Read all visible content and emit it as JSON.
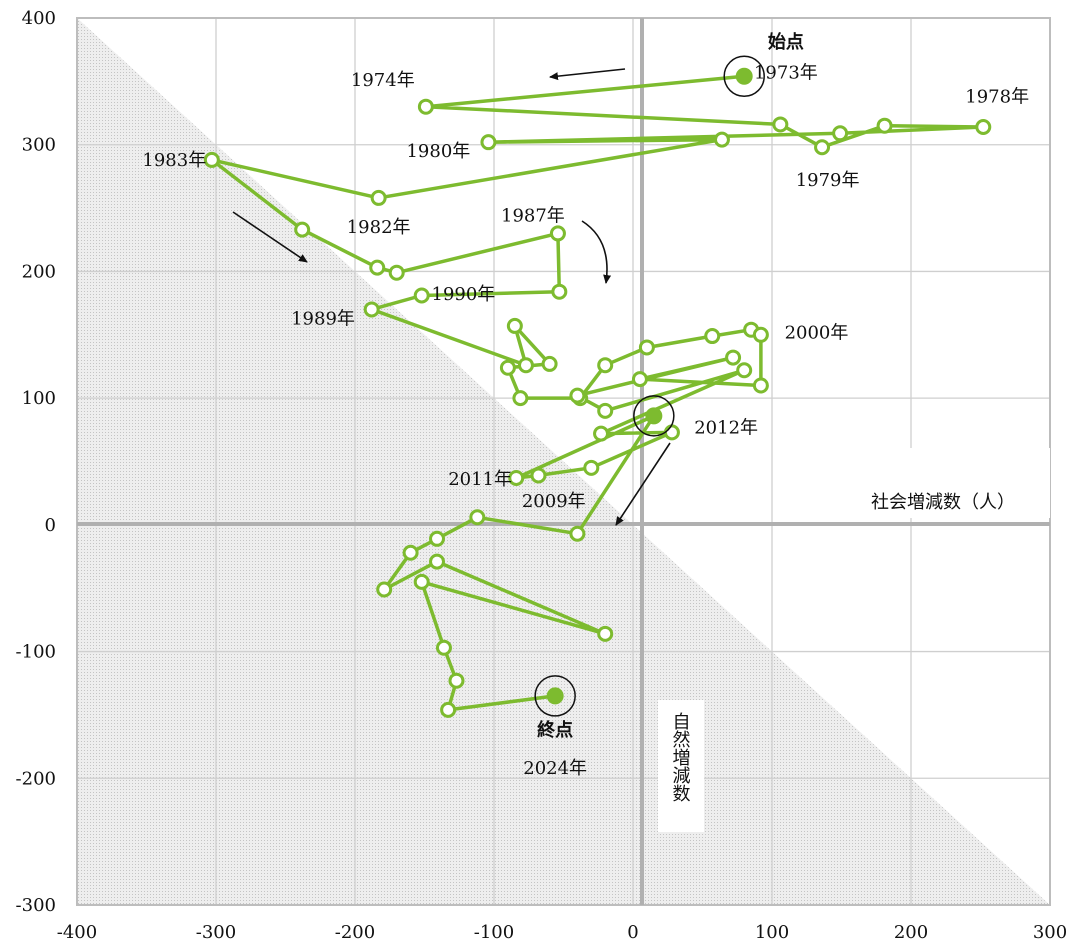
{
  "chart_data": {
    "type": "scatter",
    "xlabel": "社会増減数（人）",
    "ylabel": "自然増減数",
    "xlim": [
      -400,
      300
    ],
    "ylim": [
      -300,
      400
    ],
    "x_ticks": [
      "-400",
      "-300",
      "-200",
      "-100",
      "0",
      "100",
      "200",
      "300"
    ],
    "y_ticks": [
      "-300",
      "-200",
      "-100",
      "0",
      "100",
      "200",
      "300",
      "400"
    ],
    "grid": true,
    "line_color": "#7dbb2f",
    "series": [
      {
        "points": [
          {
            "x": 80,
            "y": 354
          },
          {
            "x": -149,
            "y": 330
          },
          {
            "x": 106,
            "y": 316
          },
          {
            "x": 136,
            "y": 298
          },
          {
            "x": 181,
            "y": 315
          },
          {
            "x": 252,
            "y": 314
          },
          {
            "x": 149,
            "y": 309
          },
          {
            "x": -104,
            "y": 302
          },
          {
            "x": 64,
            "y": 304
          },
          {
            "x": -183,
            "y": 258
          },
          {
            "x": -303,
            "y": 288
          },
          {
            "x": -238,
            "y": 233
          },
          {
            "x": -184,
            "y": 203
          },
          {
            "x": -170,
            "y": 199
          },
          {
            "x": -54,
            "y": 230
          },
          {
            "x": -53,
            "y": 184
          },
          {
            "x": -152,
            "y": 181
          },
          {
            "x": -188,
            "y": 170
          },
          {
            "x": -77,
            "y": 126
          },
          {
            "x": -85,
            "y": 157
          },
          {
            "x": -60,
            "y": 127
          },
          {
            "x": -90,
            "y": 124
          },
          {
            "x": -81,
            "y": 100
          },
          {
            "x": -38,
            "y": 100
          },
          {
            "x": -20,
            "y": 126
          },
          {
            "x": 10,
            "y": 140
          },
          {
            "x": 57,
            "y": 149
          },
          {
            "x": 85,
            "y": 154
          },
          {
            "x": 92,
            "y": 150
          },
          {
            "x": 92,
            "y": 110
          },
          {
            "x": 5,
            "y": 115
          },
          {
            "x": 72,
            "y": 132
          },
          {
            "x": -40,
            "y": 102
          },
          {
            "x": -20,
            "y": 90
          },
          {
            "x": 80,
            "y": 122
          },
          {
            "x": -23,
            "y": 72
          },
          {
            "x": 28,
            "y": 73
          },
          {
            "x": -30,
            "y": 45
          },
          {
            "x": -68,
            "y": 39
          },
          {
            "x": -84,
            "y": 37
          },
          {
            "x": 15,
            "y": 86
          },
          {
            "x": -40,
            "y": -7
          },
          {
            "x": -112,
            "y": 6
          },
          {
            "x": -141,
            "y": -11
          },
          {
            "x": -160,
            "y": -22
          },
          {
            "x": -179,
            "y": -51
          },
          {
            "x": -141,
            "y": -29
          },
          {
            "x": -20,
            "y": -86
          },
          {
            "x": -152,
            "y": -45
          },
          {
            "x": -136,
            "y": -97
          },
          {
            "x": -127,
            "y": -123
          },
          {
            "x": -133,
            "y": -146
          },
          {
            "x": -56,
            "y": -135
          }
        ]
      }
    ],
    "highlight_points": [
      {
        "x": 80,
        "y": 354
      },
      {
        "x": 15,
        "y": 86
      },
      {
        "x": -56,
        "y": -135
      }
    ],
    "labels": [
      {
        "text": "始点",
        "x": 110,
        "y": 381,
        "bold": true
      },
      {
        "text": "1973年",
        "x": 110,
        "y": 357
      },
      {
        "text": "1974年",
        "x": -180,
        "y": 351
      },
      {
        "text": "1978年",
        "x": 262,
        "y": 338
      },
      {
        "text": "1980年",
        "x": -140,
        "y": 295
      },
      {
        "text": "1979年",
        "x": 140,
        "y": 272
      },
      {
        "text": "1983年",
        "x": -330,
        "y": 288
      },
      {
        "text": "1982年",
        "x": -183,
        "y": 235
      },
      {
        "text": "1987年",
        "x": -72,
        "y": 244
      },
      {
        "text": "1990年",
        "x": -122,
        "y": 182
      },
      {
        "text": "1989年",
        "x": -223,
        "y": 163
      },
      {
        "text": "2000年",
        "x": 132,
        "y": 152
      },
      {
        "text": "2012年",
        "x": 67,
        "y": 77
      },
      {
        "text": "2011年",
        "x": -110,
        "y": 36
      },
      {
        "text": "2009年",
        "x": -57,
        "y": 19
      },
      {
        "text": "社会増減数（人）",
        "x": 223,
        "y": 18
      },
      {
        "text": "終点",
        "x": -56,
        "y": -162,
        "bold": true
      },
      {
        "text": "2024年",
        "x": -56,
        "y": -192
      }
    ]
  }
}
